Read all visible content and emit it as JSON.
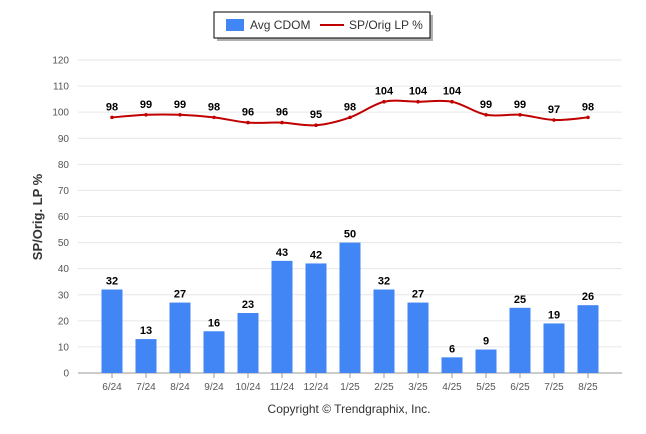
{
  "chart_data": {
    "type": "bar",
    "categories": [
      "6/24",
      "7/24",
      "8/24",
      "9/24",
      "10/24",
      "11/24",
      "12/24",
      "1/25",
      "2/25",
      "3/25",
      "4/25",
      "5/25",
      "6/25",
      "7/25",
      "8/25"
    ],
    "series": [
      {
        "name": "Avg CDOM",
        "kind": "bar",
        "color": "#4285f4",
        "values": [
          32,
          13,
          27,
          16,
          23,
          43,
          42,
          50,
          32,
          27,
          6,
          9,
          25,
          19,
          26
        ]
      },
      {
        "name": "SP/Orig LP %",
        "kind": "line",
        "color": "#c00000",
        "values": [
          98,
          99,
          99,
          98,
          96,
          96,
          95,
          98,
          104,
          104,
          104,
          99,
          99,
          97,
          98
        ]
      }
    ],
    "ylabel": "SP/Orig. LP %",
    "xlabel": "",
    "ylim": [
      0,
      120
    ],
    "yticks": [
      0,
      10,
      20,
      30,
      40,
      50,
      60,
      70,
      80,
      90,
      100,
      110,
      120
    ],
    "grid": true,
    "legend_position": "top-center"
  },
  "footer": {
    "copyright": "Copyright © Trendgraphix, Inc."
  }
}
